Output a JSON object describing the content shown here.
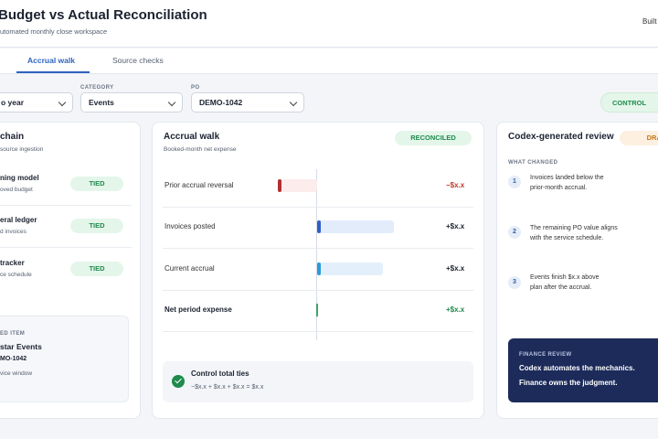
{
  "header": {
    "title": "Budget vs Actual Reconciliation",
    "subtitle": "utomated monthly close workspace",
    "action": "Built"
  },
  "tabs": [
    "Accrual walk",
    "Source checks"
  ],
  "filters": [
    {
      "value": "o year"
    },
    {
      "label": "CATEGORY",
      "value": "Events"
    },
    {
      "label": "PO",
      "value": "DEMO-1042"
    }
  ],
  "status_pill": "CONTROL",
  "source_chain": {
    "title": "chain",
    "subtitle": "source ingestion",
    "items": [
      {
        "name": "ning model",
        "detail": "oved budget",
        "status": "TIED"
      },
      {
        "name": "eral ledger",
        "detail": "d invoices",
        "status": "TIED"
      },
      {
        "name": "tracker",
        "detail": "ce schedule",
        "status": "TIED"
      }
    ],
    "linked": {
      "label": "ED ITEM",
      "name": "star Events",
      "id": "MO-1042",
      "detail": "vice window"
    }
  },
  "accrual_walk": {
    "title": "Accrual walk",
    "subtitle": "Booked-month net expense",
    "status": "RECONCILED",
    "rows": [
      {
        "label": "Prior accrual reversal",
        "value": "−$x.x"
      },
      {
        "label": "Invoices posted",
        "value": "+$x.x"
      },
      {
        "label": "Current accrual",
        "value": "+$x.x"
      },
      {
        "label": "Net period expense",
        "value": "+$x.x"
      }
    ],
    "check": {
      "title": "Control total ties",
      "formula": "−$x.x + $x.x + $x.x = $x.x"
    }
  },
  "review": {
    "title": "Codex-generated review",
    "status": "DRAF",
    "section": "WHAT CHANGED",
    "items": [
      {
        "number": 1,
        "lines": [
          "Invoices landed below the",
          "prior-month accrual."
        ]
      },
      {
        "number": 2,
        "lines": [
          "The remaining PO value aligns",
          "with the service schedule."
        ]
      },
      {
        "number": 3,
        "lines": [
          "Events finish $x.x above",
          "plan after the accrual."
        ]
      }
    ],
    "note": {
      "label": "FINANCE REVIEW",
      "lines": [
        "Codex automates the mechanics.",
        "Finance owns the judgment."
      ]
    }
  }
}
